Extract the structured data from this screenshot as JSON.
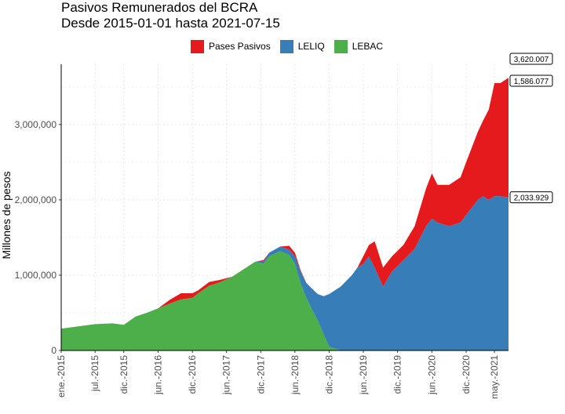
{
  "chart_data": {
    "type": "area",
    "title": "Pasivos Remunerados del BCRA",
    "subtitle": "Desde 2015-01-01 hasta 2021-07-15",
    "xlabel": "",
    "ylabel": "Millones de pesos",
    "stacked": true,
    "ylim": [
      0,
      3800000
    ],
    "yticks": [
      0,
      1000000,
      2000000,
      3000000
    ],
    "ytick_labels": [
      "0",
      "1,000,000",
      "2,000,000",
      "3,000,000"
    ],
    "xticks": [
      "2015-01-01",
      "2015-07-01",
      "2015-12-01",
      "2016-06-01",
      "2016-12-01",
      "2017-06-01",
      "2017-12-01",
      "2018-06-01",
      "2018-12-01",
      "2019-06-01",
      "2019-12-01",
      "2020-06-01",
      "2020-12-01",
      "2021-05-01"
    ],
    "xtick_labels": [
      "ene.-2015",
      "jul.-2015",
      "dic.-2015",
      "jun.-2016",
      "dic.-2016",
      "jun.-2017",
      "dic.-2017",
      "jun.-2018",
      "dic.-2018",
      "jun.-2019",
      "dic.-2019",
      "jun.-2020",
      "dic.-2020",
      "may.-2021"
    ],
    "xlim": [
      "2015-01-01",
      "2021-07-15"
    ],
    "grid": true,
    "legend_position": "top",
    "colors": {
      "Pases Pasivos": "#E41A1C",
      "LELIQ": "#377EB8",
      "LEBAC": "#4DAF4A"
    },
    "dates": [
      "2015-01-01",
      "2015-04-01",
      "2015-07-01",
      "2015-10-01",
      "2015-12-01",
      "2016-02-01",
      "2016-04-01",
      "2016-06-01",
      "2016-08-01",
      "2016-10-01",
      "2016-12-01",
      "2017-01-01",
      "2017-03-01",
      "2017-05-01",
      "2017-07-01",
      "2017-09-01",
      "2017-11-01",
      "2017-12-15",
      "2018-01-15",
      "2018-03-15",
      "2018-05-01",
      "2018-06-01",
      "2018-07-01",
      "2018-08-01",
      "2018-09-01",
      "2018-10-01",
      "2018-11-01",
      "2018-12-01",
      "2019-02-01",
      "2019-04-01",
      "2019-05-01",
      "2019-06-01",
      "2019-07-01",
      "2019-08-01",
      "2019-09-15",
      "2019-11-01",
      "2020-01-01",
      "2020-03-01",
      "2020-05-01",
      "2020-06-01",
      "2020-07-01",
      "2020-09-01",
      "2020-11-01",
      "2020-12-01",
      "2021-01-01",
      "2021-02-01",
      "2021-03-01",
      "2021-04-01",
      "2021-05-01",
      "2021-06-01",
      "2021-07-15"
    ],
    "series": [
      {
        "name": "LEBAC",
        "values": [
          290000,
          320000,
          350000,
          360000,
          340000,
          450000,
          500000,
          560000,
          620000,
          680000,
          700000,
          760000,
          860000,
          910000,
          980000,
          1080000,
          1180000,
          1150000,
          1250000,
          1320000,
          1270000,
          1150000,
          900000,
          700000,
          540000,
          400000,
          220000,
          50000,
          0,
          0,
          0,
          0,
          0,
          0,
          0,
          0,
          0,
          0,
          0,
          0,
          0,
          0,
          0,
          0,
          0,
          0,
          0,
          0,
          0,
          0,
          0
        ]
      },
      {
        "name": "LELIQ",
        "values": [
          0,
          0,
          0,
          0,
          0,
          0,
          0,
          0,
          0,
          0,
          0,
          0,
          0,
          0,
          0,
          0,
          0,
          30000,
          50000,
          60000,
          70000,
          100000,
          150000,
          200000,
          280000,
          350000,
          500000,
          700000,
          850000,
          1000000,
          1100000,
          1150000,
          1250000,
          1100000,
          850000,
          1050000,
          1200000,
          1350000,
          1650000,
          1750000,
          1700000,
          1650000,
          1700000,
          1800000,
          1900000,
          2000000,
          2050000,
          2000000,
          2050000,
          2050000,
          2033929
        ]
      },
      {
        "name": "Pases Pasivos",
        "values": [
          0,
          0,
          0,
          0,
          0,
          0,
          0,
          0,
          50000,
          80000,
          60000,
          40000,
          50000,
          30000,
          0,
          0,
          0,
          20000,
          0,
          0,
          50000,
          50000,
          20000,
          0,
          0,
          0,
          0,
          0,
          0,
          0,
          0,
          100000,
          150000,
          350000,
          250000,
          200000,
          200000,
          300000,
          500000,
          600000,
          500000,
          550000,
          600000,
          700000,
          800000,
          900000,
          1000000,
          1200000,
          1500000,
          1500000,
          1586077
        ]
      }
    ],
    "end_labels": [
      {
        "series": "Total",
        "value": 3620007,
        "text": "3,620.007"
      },
      {
        "series": "Pases Pasivos",
        "value": 1586077,
        "text": "1,586.077"
      },
      {
        "series": "LELIQ",
        "value": 2033929,
        "text": "2,033.929"
      }
    ]
  }
}
